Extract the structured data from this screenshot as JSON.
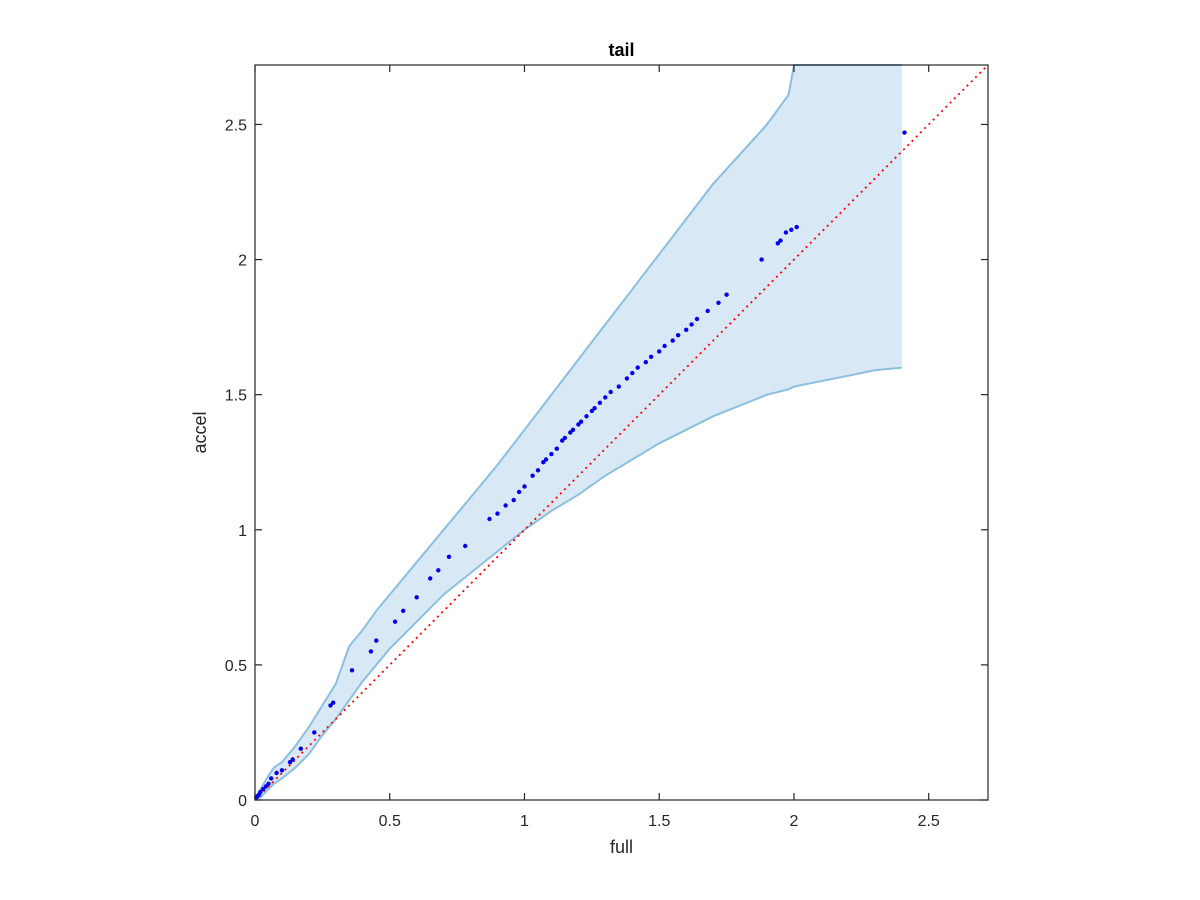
{
  "chart_data": {
    "type": "scatter",
    "title": "tail",
    "xlabel": "full",
    "ylabel": "accel",
    "xlim": [
      0,
      2.72
    ],
    "ylim": [
      0,
      2.72
    ],
    "xticks": [
      0,
      0.5,
      1,
      1.5,
      2,
      2.5
    ],
    "yticks": [
      0,
      0.5,
      1,
      1.5,
      2,
      2.5
    ],
    "xtick_labels": [
      "0",
      "0.5",
      "1",
      "1.5",
      "2",
      "2.5"
    ],
    "ytick_labels": [
      "0",
      "0.5",
      "1",
      "1.5",
      "2",
      "2.5"
    ],
    "grid": false,
    "colors": {
      "points": "#0000ee",
      "band_fill": "#d8e8f4",
      "band_edge": "#8bbfe0",
      "reference_line": "#ff0000",
      "axes": "#262626"
    },
    "band": {
      "x": [
        0,
        0.02,
        0.05,
        0.07,
        0.1,
        0.15,
        0.2,
        0.25,
        0.3,
        0.35,
        0.4,
        0.45,
        0.5,
        0.6,
        0.7,
        0.8,
        0.9,
        1.0,
        1.1,
        1.2,
        1.3,
        1.4,
        1.5,
        1.6,
        1.7,
        1.8,
        1.9,
        1.98,
        2.0,
        2.1,
        2.2,
        2.3,
        2.4
      ],
      "upper": [
        0,
        0.04,
        0.09,
        0.12,
        0.14,
        0.2,
        0.27,
        0.35,
        0.43,
        0.57,
        0.63,
        0.7,
        0.76,
        0.88,
        1.0,
        1.12,
        1.24,
        1.37,
        1.5,
        1.63,
        1.76,
        1.89,
        2.02,
        2.15,
        2.28,
        2.39,
        2.5,
        2.61,
        2.72,
        2.72,
        2.72,
        2.72,
        2.72
      ],
      "lower": [
        0,
        0.01,
        0.04,
        0.06,
        0.08,
        0.12,
        0.17,
        0.24,
        0.3,
        0.37,
        0.44,
        0.5,
        0.56,
        0.66,
        0.76,
        0.84,
        0.92,
        1.0,
        1.07,
        1.13,
        1.2,
        1.26,
        1.32,
        1.37,
        1.42,
        1.46,
        1.5,
        1.52,
        1.53,
        1.55,
        1.57,
        1.59,
        1.6
      ]
    },
    "reference_line": {
      "x": [
        0,
        2.72
      ],
      "y": [
        0,
        2.72
      ]
    },
    "points": {
      "x": [
        0.005,
        0.01,
        0.015,
        0.02,
        0.03,
        0.04,
        0.05,
        0.06,
        0.08,
        0.1,
        0.13,
        0.14,
        0.17,
        0.22,
        0.28,
        0.29,
        0.36,
        0.43,
        0.45,
        0.52,
        0.55,
        0.6,
        0.65,
        0.68,
        0.72,
        0.78,
        0.87,
        0.9,
        0.93,
        0.96,
        0.98,
        1.0,
        1.03,
        1.05,
        1.07,
        1.08,
        1.1,
        1.12,
        1.14,
        1.15,
        1.17,
        1.18,
        1.2,
        1.21,
        1.23,
        1.25,
        1.26,
        1.28,
        1.3,
        1.32,
        1.35,
        1.38,
        1.4,
        1.42,
        1.45,
        1.47,
        1.5,
        1.52,
        1.55,
        1.57,
        1.6,
        1.62,
        1.64,
        1.68,
        1.72,
        1.75,
        1.88,
        1.94,
        1.95,
        1.97,
        1.99,
        2.01,
        2.41
      ],
      "y": [
        0.01,
        0.015,
        0.02,
        0.03,
        0.04,
        0.05,
        0.06,
        0.08,
        0.1,
        0.11,
        0.14,
        0.15,
        0.19,
        0.25,
        0.35,
        0.36,
        0.48,
        0.55,
        0.59,
        0.66,
        0.7,
        0.75,
        0.82,
        0.85,
        0.9,
        0.94,
        1.04,
        1.06,
        1.09,
        1.11,
        1.14,
        1.16,
        1.2,
        1.22,
        1.25,
        1.26,
        1.28,
        1.3,
        1.33,
        1.34,
        1.36,
        1.37,
        1.39,
        1.4,
        1.42,
        1.44,
        1.45,
        1.47,
        1.49,
        1.51,
        1.53,
        1.56,
        1.58,
        1.6,
        1.62,
        1.64,
        1.66,
        1.68,
        1.7,
        1.72,
        1.74,
        1.76,
        1.78,
        1.81,
        1.84,
        1.87,
        2.0,
        2.06,
        2.07,
        2.1,
        2.11,
        2.12,
        2.47
      ]
    }
  }
}
